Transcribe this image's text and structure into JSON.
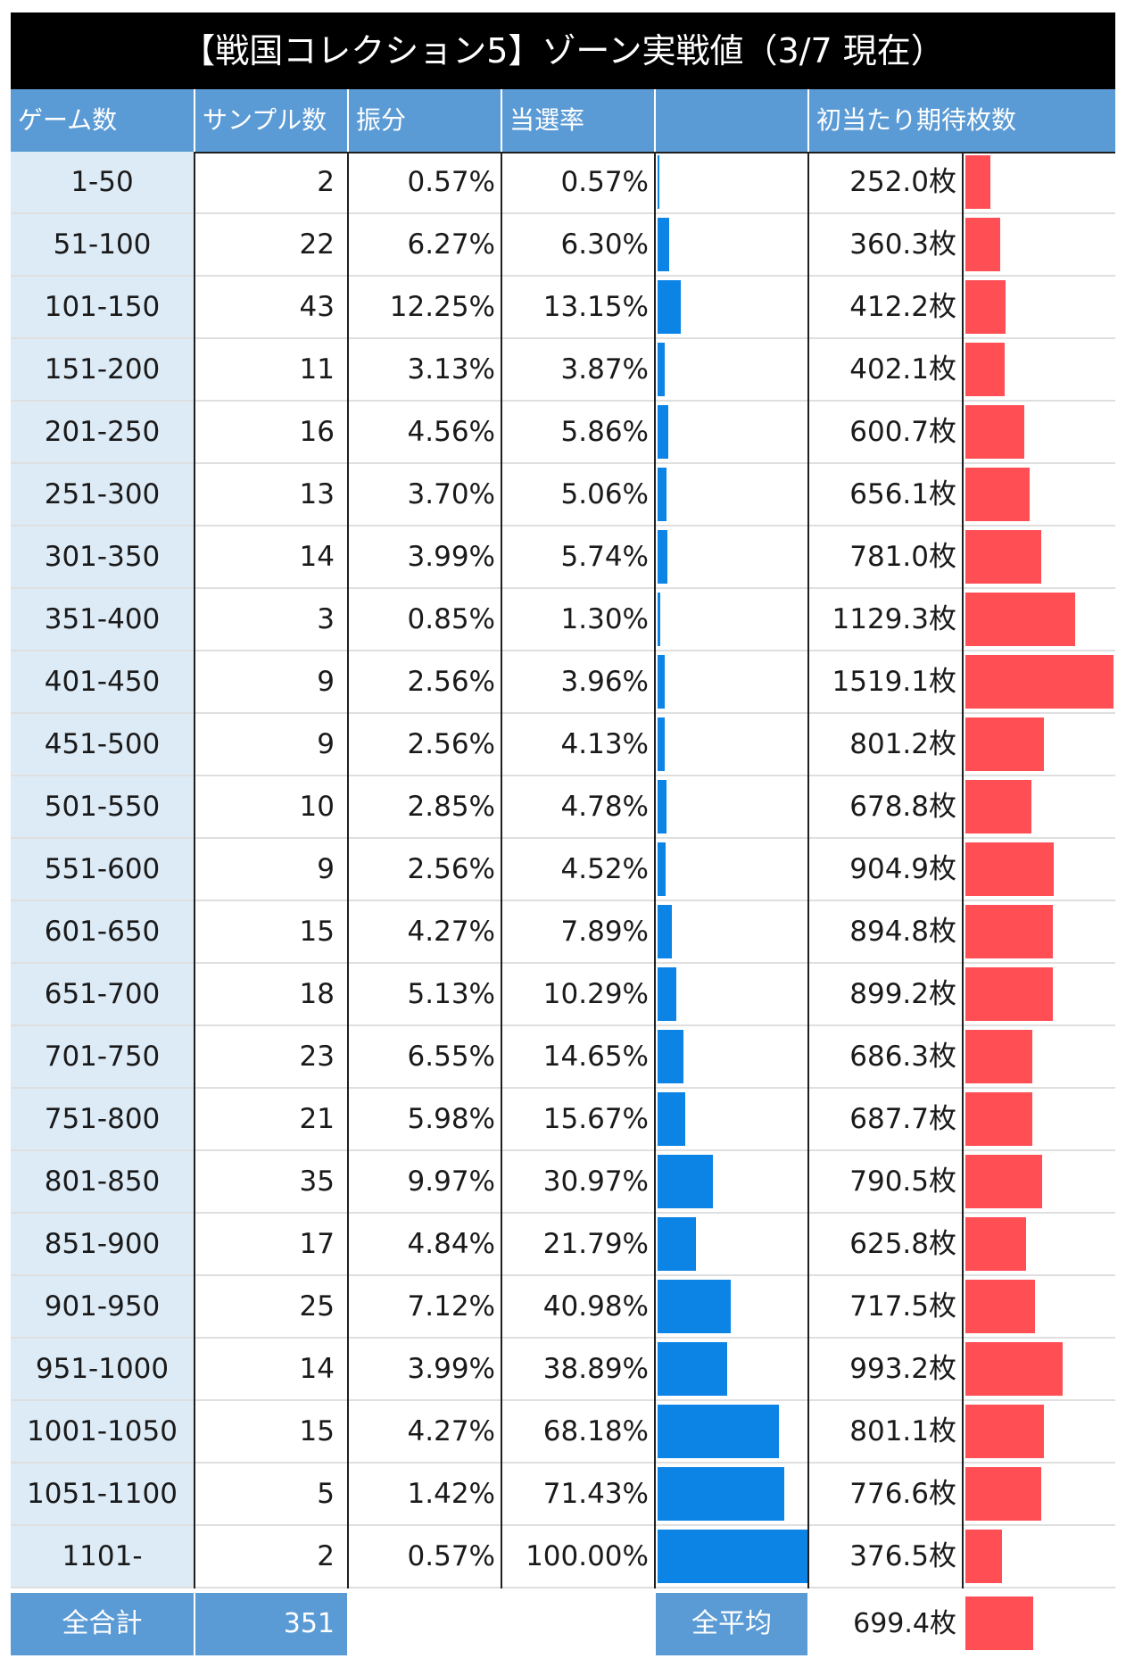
{
  "title": "【戦国コレクション5】ゾーン実戦値（3/7 現在）",
  "headers": {
    "game": "ゲーム数",
    "sample": "サンプル数",
    "share": "振分",
    "rate": "当選率",
    "rate_bar": "",
    "coins": "初当たり期待枚数"
  },
  "colors": {
    "rate_bar": "#0b84e6",
    "coins_bar": "#ff4f55",
    "header": "#5b9bd5",
    "game_col": "#ddebf7"
  },
  "chart_data": {
    "type": "table",
    "title": "【戦国コレクション5】ゾーン実戦値（3/7 現在）",
    "columns": [
      "ゲーム数",
      "サンプル数",
      "振分",
      "当選率",
      "",
      "初当たり期待枚数"
    ],
    "rate_bar_max": 68.18,
    "coins_bar_max": 1519.1,
    "rows": [
      {
        "game": "1-50",
        "sample": "2",
        "share": "0.57%",
        "rate": "0.57%",
        "rate_value": 0.57,
        "coins": "252.0枚",
        "coins_value": 252.0
      },
      {
        "game": "51-100",
        "sample": "22",
        "share": "6.27%",
        "rate": "6.30%",
        "rate_value": 6.3,
        "coins": "360.3枚",
        "coins_value": 360.3
      },
      {
        "game": "101-150",
        "sample": "43",
        "share": "12.25%",
        "rate": "13.15%",
        "rate_value": 13.15,
        "coins": "412.2枚",
        "coins_value": 412.2
      },
      {
        "game": "151-200",
        "sample": "11",
        "share": "3.13%",
        "rate": "3.87%",
        "rate_value": 3.87,
        "coins": "402.1枚",
        "coins_value": 402.1
      },
      {
        "game": "201-250",
        "sample": "16",
        "share": "4.56%",
        "rate": "5.86%",
        "rate_value": 5.86,
        "coins": "600.7枚",
        "coins_value": 600.7
      },
      {
        "game": "251-300",
        "sample": "13",
        "share": "3.70%",
        "rate": "5.06%",
        "rate_value": 5.06,
        "coins": "656.1枚",
        "coins_value": 656.1
      },
      {
        "game": "301-350",
        "sample": "14",
        "share": "3.99%",
        "rate": "5.74%",
        "rate_value": 5.74,
        "coins": "781.0枚",
        "coins_value": 781.0
      },
      {
        "game": "351-400",
        "sample": "3",
        "share": "0.85%",
        "rate": "1.30%",
        "rate_value": 1.3,
        "coins": "1129.3枚",
        "coins_value": 1129.3
      },
      {
        "game": "401-450",
        "sample": "9",
        "share": "2.56%",
        "rate": "3.96%",
        "rate_value": 3.96,
        "coins": "1519.1枚",
        "coins_value": 1519.1
      },
      {
        "game": "451-500",
        "sample": "9",
        "share": "2.56%",
        "rate": "4.13%",
        "rate_value": 4.13,
        "coins": "801.2枚",
        "coins_value": 801.2
      },
      {
        "game": "501-550",
        "sample": "10",
        "share": "2.85%",
        "rate": "4.78%",
        "rate_value": 4.78,
        "coins": "678.8枚",
        "coins_value": 678.8
      },
      {
        "game": "551-600",
        "sample": "9",
        "share": "2.56%",
        "rate": "4.52%",
        "rate_value": 4.52,
        "coins": "904.9枚",
        "coins_value": 904.9
      },
      {
        "game": "601-650",
        "sample": "15",
        "share": "4.27%",
        "rate": "7.89%",
        "rate_value": 7.89,
        "coins": "894.8枚",
        "coins_value": 894.8
      },
      {
        "game": "651-700",
        "sample": "18",
        "share": "5.13%",
        "rate": "10.29%",
        "rate_value": 10.29,
        "coins": "899.2枚",
        "coins_value": 899.2
      },
      {
        "game": "701-750",
        "sample": "23",
        "share": "6.55%",
        "rate": "14.65%",
        "rate_value": 14.65,
        "coins": "686.3枚",
        "coins_value": 686.3
      },
      {
        "game": "751-800",
        "sample": "21",
        "share": "5.98%",
        "rate": "15.67%",
        "rate_value": 15.67,
        "coins": "687.7枚",
        "coins_value": 687.7
      },
      {
        "game": "801-850",
        "sample": "35",
        "share": "9.97%",
        "rate": "30.97%",
        "rate_value": 30.97,
        "coins": "790.5枚",
        "coins_value": 790.5
      },
      {
        "game": "851-900",
        "sample": "17",
        "share": "4.84%",
        "rate": "21.79%",
        "rate_value": 21.79,
        "coins": "625.8枚",
        "coins_value": 625.8
      },
      {
        "game": "901-950",
        "sample": "25",
        "share": "7.12%",
        "rate": "40.98%",
        "rate_value": 40.98,
        "coins": "717.5枚",
        "coins_value": 717.5
      },
      {
        "game": "951-1000",
        "sample": "14",
        "share": "3.99%",
        "rate": "38.89%",
        "rate_value": 38.89,
        "coins": "993.2枚",
        "coins_value": 993.2
      },
      {
        "game": "1001-1050",
        "sample": "15",
        "share": "4.27%",
        "rate": "68.18%",
        "rate_value": 68.18,
        "coins": "801.1枚",
        "coins_value": 801.1
      },
      {
        "game": "1051-1100",
        "sample": "5",
        "share": "1.42%",
        "rate": "71.43%",
        "rate_value": 71.43,
        "coins": "776.6枚",
        "coins_value": 776.6
      },
      {
        "game": "1101-",
        "sample": "2",
        "share": "0.57%",
        "rate": "100.00%",
        "rate_value": 100.0,
        "coins": "376.5枚",
        "coins_value": 376.5
      }
    ],
    "footer": {
      "total_label": "全合計",
      "total_value": "351",
      "average_label": "全平均",
      "average_value": "699.4枚",
      "average_coins_value": 699.4
    }
  }
}
